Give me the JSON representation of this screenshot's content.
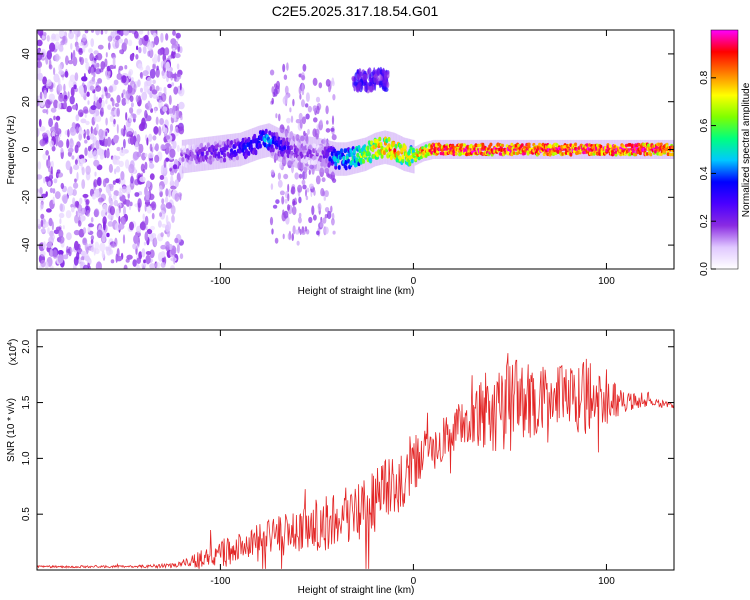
{
  "figure_title": "C2E5.2025.317.18.54.G01",
  "chart_data": [
    {
      "type": "heatmap",
      "title": "C2E5.2025.317.18.54.G01",
      "xlabel": "Height of straight line (km)",
      "ylabel": "Frequency (Hz)",
      "xlim": [
        -195,
        135
      ],
      "ylim": [
        -50,
        50
      ],
      "xticks": [
        -100,
        0,
        100
      ],
      "yticks": [
        -40,
        -20,
        0,
        20,
        40
      ],
      "grid": false,
      "colorbar": {
        "label": "Normalized spectral amplitude",
        "range": [
          0,
          1
        ],
        "ticks": [
          0.0,
          0.2,
          0.4,
          0.6,
          0.8
        ],
        "tick_labels": [
          "0.0",
          "0.2",
          "0.4",
          "0.6",
          "0.8"
        ],
        "colormap": [
          "#ffffff",
          "#e0c8ff",
          "#8a2be2",
          "#4b00ff",
          "#0000ff",
          "#00c8ff",
          "#00ff7f",
          "#7fff00",
          "#ffff00",
          "#ff8000",
          "#ff0000",
          "#ff00ff"
        ]
      },
      "scatter_region": {
        "x": [
          -195,
          -120
        ],
        "y": [
          -50,
          50
        ],
        "amplitude": [
          0.05,
          0.2
        ]
      },
      "ridge": {
        "x": [
          -120,
          -110,
          -100,
          -90,
          -80,
          -75,
          -70,
          -60,
          -50,
          -45,
          -40,
          -35,
          -30,
          -25,
          -20,
          -15,
          -10,
          -5,
          0,
          5,
          10,
          20,
          40,
          60,
          80,
          100,
          120,
          135
        ],
        "y": [
          -3,
          -2,
          -1,
          0,
          3,
          4,
          2,
          -1,
          -2,
          -3,
          -4,
          -4,
          -3,
          -2,
          0,
          1,
          0,
          -2,
          -3,
          -1,
          0,
          0,
          0,
          0,
          0,
          0,
          0,
          0
        ],
        "amplitude": [
          0.2,
          0.25,
          0.3,
          0.35,
          0.4,
          0.5,
          0.35,
          0.25,
          0.2,
          0.3,
          0.5,
          0.5,
          0.6,
          0.7,
          0.8,
          0.85,
          0.85,
          0.8,
          0.7,
          0.85,
          0.95,
          0.95,
          0.95,
          0.95,
          0.95,
          0.95,
          0.95,
          0.9
        ]
      },
      "vertical_streaks": [
        {
          "x": -65,
          "y": [
            -40,
            35
          ],
          "amplitude": 0.15
        },
        {
          "x": -50,
          "y": [
            -35,
            30
          ],
          "amplitude": 0.15
        },
        {
          "x": -22,
          "y": [
            25,
            33
          ],
          "amplitude": 0.25
        }
      ]
    },
    {
      "type": "line",
      "xlabel": "Height of straight line (km)",
      "ylabel": "SNR (10 * v/v)",
      "y_multiplier": "(x10",
      "y_multiplier_exp": "4",
      "y_multiplier_close": ")",
      "xlim": [
        -195,
        135
      ],
      "ylim": [
        0,
        2.15
      ],
      "xticks": [
        -100,
        0,
        100
      ],
      "yticks": [
        0.5,
        1.0,
        1.5,
        2.0
      ],
      "ytick_labels": [
        "0.5",
        "1.0",
        "1.5",
        "2.0"
      ],
      "color": "#e32626",
      "grid": false,
      "series": [
        {
          "name": "SNR",
          "x": [
            -195,
            -170,
            -145,
            -125,
            -120,
            -110,
            -100,
            -90,
            -80,
            -70,
            -60,
            -50,
            -40,
            -30,
            -20,
            -10,
            0,
            10,
            20,
            30,
            40,
            50,
            60,
            70,
            80,
            90,
            100,
            110,
            120,
            135
          ],
          "y": [
            0.03,
            0.03,
            0.03,
            0.04,
            0.06,
            0.1,
            0.15,
            0.2,
            0.25,
            0.3,
            0.35,
            0.4,
            0.45,
            0.52,
            0.6,
            0.75,
            0.95,
            1.1,
            1.25,
            1.35,
            1.42,
            1.5,
            1.52,
            1.55,
            1.55,
            1.55,
            1.55,
            1.52,
            1.5,
            1.48
          ],
          "noise": [
            0.01,
            0.01,
            0.01,
            0.02,
            0.03,
            0.08,
            0.12,
            0.15,
            0.18,
            0.2,
            0.22,
            0.24,
            0.26,
            0.28,
            0.3,
            0.3,
            0.28,
            0.22,
            0.2,
            0.25,
            0.35,
            0.45,
            0.35,
            0.25,
            0.3,
            0.35,
            0.25,
            0.1,
            0.04,
            0.03
          ]
        }
      ]
    }
  ]
}
